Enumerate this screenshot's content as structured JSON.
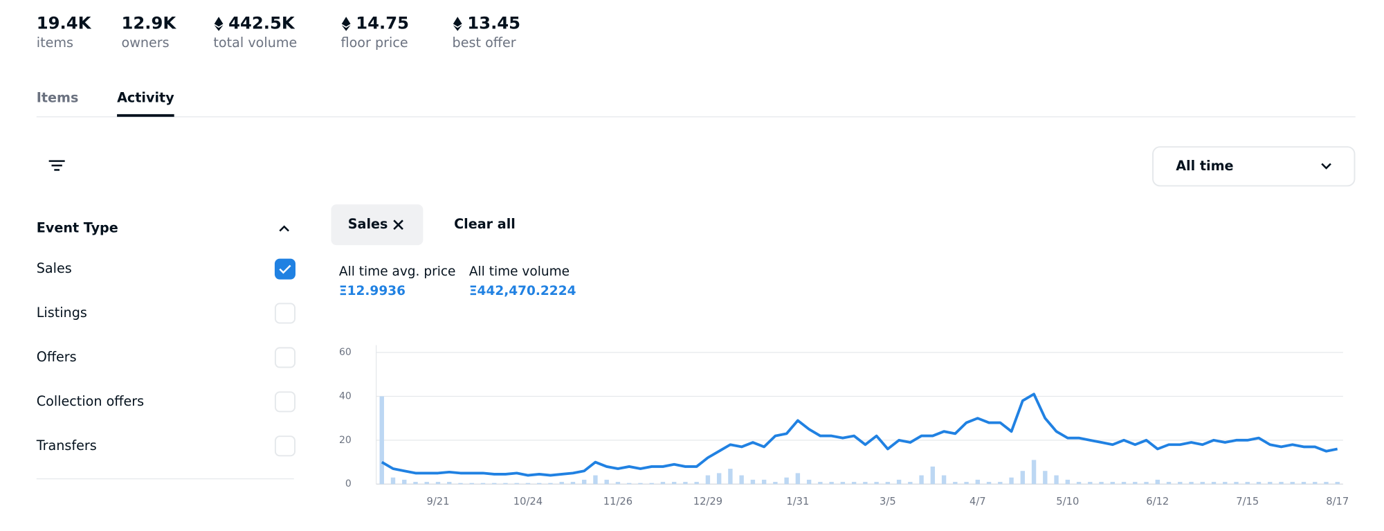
{
  "stats": [
    {
      "value": "19.4K",
      "label": "items",
      "eth": false
    },
    {
      "value": "12.9K",
      "label": "owners",
      "eth": false
    },
    {
      "value": "442.5K",
      "label": "total volume",
      "eth": true
    },
    {
      "value": "14.75",
      "label": "floor price",
      "eth": true
    },
    {
      "value": "13.45",
      "label": "best offer",
      "eth": true
    }
  ],
  "tabs": {
    "items": [
      "Items",
      "Activity"
    ],
    "active": 1
  },
  "time_filter": "All time",
  "filter": {
    "title": "Event Type",
    "options": [
      {
        "label": "Sales",
        "checked": true
      },
      {
        "label": "Listings",
        "checked": false
      },
      {
        "label": "Offers",
        "checked": false
      },
      {
        "label": "Collection offers",
        "checked": false
      },
      {
        "label": "Transfers",
        "checked": false
      }
    ]
  },
  "chips": [
    "Sales"
  ],
  "clear_all": "Clear all",
  "summary": [
    {
      "label": "All time avg. price",
      "value": "Ξ12.9936"
    },
    {
      "label": "All time volume",
      "value": "Ξ442,470.2224"
    }
  ],
  "chart_data": {
    "type": "line",
    "categories": [
      null,
      null,
      null,
      null,
      null,
      "9/21",
      null,
      null,
      null,
      null,
      null,
      null,
      null,
      "10/24",
      null,
      null,
      null,
      null,
      null,
      null,
      null,
      "11/26",
      null,
      null,
      null,
      null,
      null,
      null,
      null,
      "12/29",
      null,
      null,
      null,
      null,
      null,
      null,
      null,
      "1/31",
      null,
      null,
      null,
      null,
      null,
      null,
      null,
      "3/5",
      null,
      null,
      null,
      null,
      null,
      null,
      null,
      "4/7",
      null,
      null,
      null,
      null,
      null,
      null,
      null,
      "5/10",
      null,
      null,
      null,
      null,
      null,
      null,
      null,
      "6/12",
      null,
      null,
      null,
      null,
      null,
      null,
      null,
      "7/15",
      null,
      null,
      null,
      null,
      null,
      null,
      null,
      "8/17"
    ],
    "series": [
      {
        "type": "bar",
        "color": "#bcd7f3",
        "values": [
          40,
          3,
          2,
          1,
          1,
          1,
          1,
          0.5,
          0.5,
          0.5,
          0.5,
          0.5,
          0.5,
          0.5,
          0.5,
          0.5,
          1,
          1,
          2,
          4,
          2,
          1,
          0.5,
          0.5,
          0.5,
          1,
          1,
          1,
          1,
          4,
          5,
          7,
          4,
          2,
          2,
          1,
          3,
          5,
          2,
          1,
          1,
          1,
          1,
          1,
          1,
          1,
          2,
          1,
          4,
          8,
          4,
          1,
          1,
          2,
          1,
          1,
          3,
          6,
          11,
          6,
          4,
          2,
          1,
          1,
          1,
          1,
          1,
          1,
          1,
          2,
          1,
          1,
          1,
          1,
          1,
          1,
          1,
          1,
          1,
          1,
          1,
          1,
          1,
          1,
          1,
          1
        ]
      },
      {
        "type": "line",
        "color": "#2081e2",
        "values": [
          10,
          7,
          6,
          5,
          5,
          5,
          5.5,
          5,
          5,
          5,
          4.5,
          4.5,
          5,
          4,
          4.5,
          4,
          4.5,
          5,
          6,
          10,
          8,
          7,
          8,
          7,
          8,
          8,
          9,
          8,
          8,
          12,
          15,
          18,
          17,
          19,
          17,
          22,
          23,
          29,
          25,
          22,
          22,
          21,
          22,
          18,
          22,
          16,
          20,
          19,
          22,
          22,
          24,
          23,
          28,
          30,
          28,
          28,
          24,
          38,
          41,
          30,
          24,
          21,
          21,
          20,
          19,
          18,
          20,
          18,
          20,
          16,
          18,
          18,
          19,
          18,
          20,
          19,
          20,
          20,
          21,
          18,
          17,
          18,
          17,
          17,
          15,
          16
        ]
      }
    ],
    "ylim": [
      0,
      63
    ],
    "yticks": [
      0,
      20,
      40,
      60
    ],
    "grid": true
  }
}
